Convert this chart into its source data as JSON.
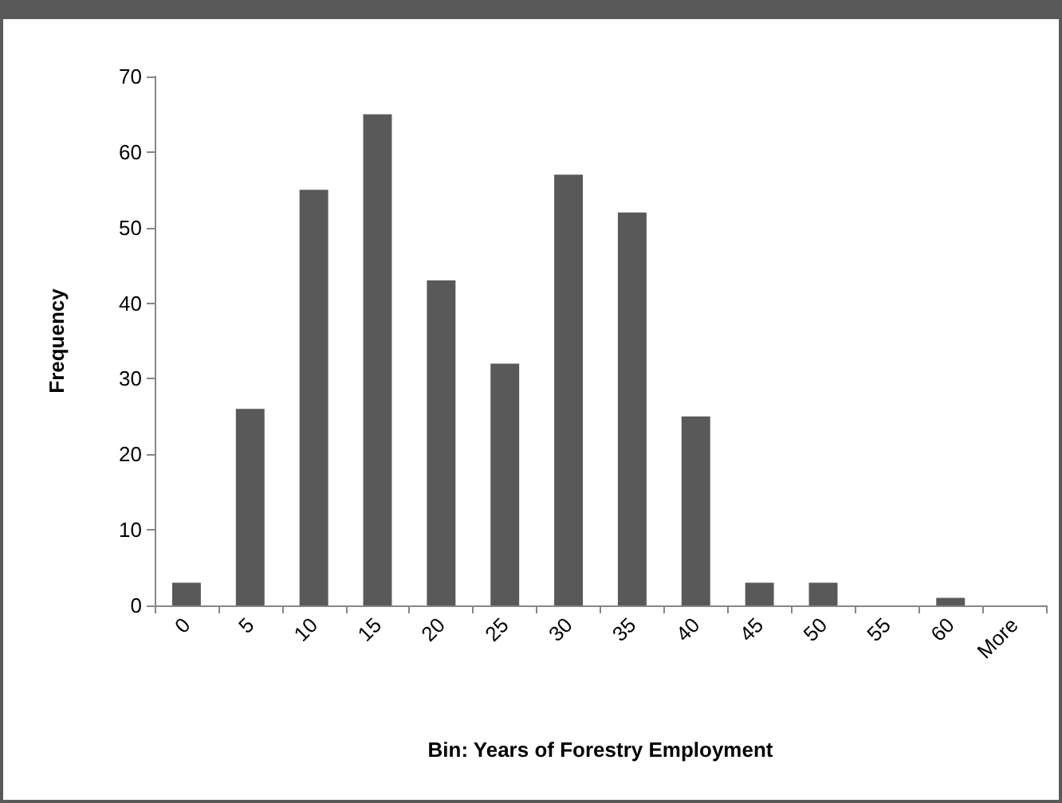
{
  "chart_data": {
    "type": "bar",
    "xlabel": "Bin: Years of Forestry Employment",
    "ylabel": "Frequency",
    "categories": [
      "0",
      "5",
      "10",
      "15",
      "20",
      "25",
      "30",
      "35",
      "40",
      "45",
      "50",
      "55",
      "60",
      "More"
    ],
    "values": [
      3,
      26,
      55,
      65,
      43,
      32,
      57,
      52,
      25,
      3,
      3,
      0,
      1,
      0
    ],
    "color": "#595959",
    "ylim": [
      0,
      70
    ],
    "yticks": [
      0,
      10,
      20,
      30,
      40,
      50,
      60,
      70
    ]
  }
}
